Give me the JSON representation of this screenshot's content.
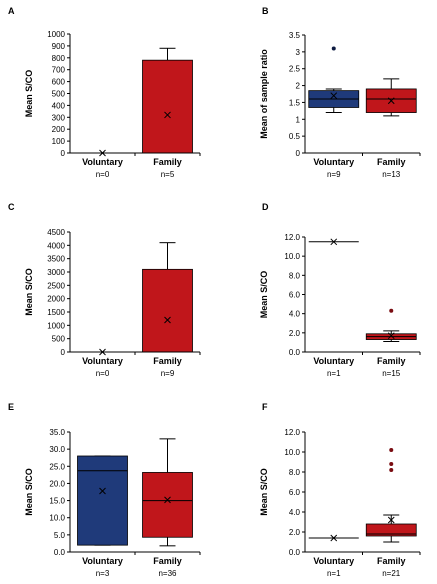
{
  "chart_data": [
    {
      "type": "box",
      "panel": "A",
      "y_label": "Mean S/CO",
      "categories": [
        "Voluntary",
        "Family"
      ],
      "sublabels": [
        "n=0",
        "n=5"
      ],
      "ylim": [
        0,
        1000
      ],
      "yticks": [
        0,
        100,
        200,
        300,
        400,
        500,
        600,
        700,
        800,
        900,
        1000
      ],
      "boxes": [
        {
          "color": "#1f3a7a",
          "median": 0,
          "mean": 0
        },
        {
          "color": "#c0161b",
          "q1": 0,
          "median": 0,
          "q3": 780,
          "whisker_low": 0,
          "whisker_high": 880,
          "mean": 320
        }
      ]
    },
    {
      "type": "box",
      "panel": "B",
      "y_label": "Mean of sample ratio",
      "categories": [
        "Voluntary",
        "Family"
      ],
      "sublabels": [
        "n=9",
        "n=13"
      ],
      "ylim": [
        0,
        3.5
      ],
      "yticks": [
        0,
        0.5,
        1,
        1.5,
        2,
        2.5,
        3,
        3.5
      ],
      "boxes": [
        {
          "color": "#1f3a7a",
          "q1": 1.35,
          "median": 1.6,
          "q3": 1.85,
          "whisker_low": 1.2,
          "whisker_high": 1.9,
          "mean": 1.7,
          "outliers": [
            3.1
          ],
          "outlier_color": "#0d1a40"
        },
        {
          "color": "#c0161b",
          "q1": 1.2,
          "median": 1.6,
          "q3": 1.9,
          "whisker_low": 1.1,
          "whisker_high": 2.2,
          "mean": 1.55
        }
      ]
    },
    {
      "type": "box",
      "panel": "C",
      "y_label": "Mean S/CO",
      "categories": [
        "Voluntary",
        "Family"
      ],
      "sublabels": [
        "n=0",
        "n=9"
      ],
      "ylim": [
        0,
        4500
      ],
      "yticks": [
        0,
        500,
        1000,
        1500,
        2000,
        2500,
        3000,
        3500,
        4000,
        4500
      ],
      "boxes": [
        {
          "color": "#1f3a7a",
          "median": 0,
          "mean": 0
        },
        {
          "color": "#c0161b",
          "q1": 0,
          "median": 0,
          "q3": 3100,
          "whisker_low": 0,
          "whisker_high": 4100,
          "mean": 1200
        }
      ]
    },
    {
      "type": "box",
      "panel": "D",
      "y_label": "Mean S/CO",
      "categories": [
        "Voluntary",
        "Family"
      ],
      "sublabels": [
        "n=1",
        "n=15"
      ],
      "ylim": [
        0,
        12
      ],
      "yticks": [
        {
          "value": 0,
          "label": "0.0"
        },
        {
          "value": 2,
          "label": "2.0"
        },
        {
          "value": 4,
          "label": "4.0"
        },
        {
          "value": 6,
          "label": "6.0"
        },
        {
          "value": 8,
          "label": "8.0"
        },
        {
          "value": 10,
          "label": "10.0"
        },
        {
          "value": 12,
          "label": "12.0"
        }
      ],
      "boxes": [
        {
          "color": "#1f3a7a",
          "median": 11.5,
          "mean": 11.5
        },
        {
          "color": "#c0161b",
          "q1": 1.3,
          "median": 1.6,
          "q3": 1.9,
          "whisker_low": 1.1,
          "whisker_high": 2.2,
          "mean": 1.7,
          "outliers": [
            4.3
          ],
          "outlier_color": "#7a0d12"
        }
      ]
    },
    {
      "type": "box",
      "panel": "E",
      "y_label": "Mean S/CO",
      "categories": [
        "Voluntary",
        "Family"
      ],
      "sublabels": [
        "n=3",
        "n=36"
      ],
      "ylim": [
        0,
        35
      ],
      "yticks": [
        {
          "value": 0,
          "label": "0.0"
        },
        {
          "value": 5,
          "label": "5.0"
        },
        {
          "value": 10,
          "label": "10.0"
        },
        {
          "value": 15,
          "label": "15.0"
        },
        {
          "value": 20,
          "label": "20.0"
        },
        {
          "value": 25,
          "label": "25.0"
        },
        {
          "value": 30,
          "label": "30.0"
        },
        {
          "value": 35,
          "label": "35.0"
        }
      ],
      "boxes": [
        {
          "color": "#1f3a7a",
          "q1": 2,
          "median": 23.7,
          "q3": 28,
          "whisker_low": 2,
          "whisker_high": 28,
          "mean": 17.8
        },
        {
          "color": "#c0161b",
          "q1": 4.3,
          "median": 15,
          "q3": 23.2,
          "whisker_low": 1.8,
          "whisker_high": 33,
          "mean": 15.2
        }
      ]
    },
    {
      "type": "box",
      "panel": "F",
      "y_label": "Mean S/CO",
      "categories": [
        "Voluntary",
        "Family"
      ],
      "sublabels": [
        "n=1",
        "n=21"
      ],
      "ylim": [
        0,
        12
      ],
      "yticks": [
        {
          "value": 0,
          "label": "0.0"
        },
        {
          "value": 2,
          "label": "2.0"
        },
        {
          "value": 4,
          "label": "4.0"
        },
        {
          "value": 6,
          "label": "6.0"
        },
        {
          "value": 8,
          "label": "8.0"
        },
        {
          "value": 10,
          "label": "10.0"
        },
        {
          "value": 12,
          "label": "12.0"
        }
      ],
      "boxes": [
        {
          "color": "#1f3a7a",
          "median": 1.4,
          "mean": 1.4
        },
        {
          "color": "#c0161b",
          "q1": 1.6,
          "median": 1.8,
          "q3": 2.8,
          "whisker_low": 1.0,
          "whisker_high": 3.7,
          "mean": 3.2,
          "outliers": [
            8.2,
            8.8,
            10.2
          ],
          "outlier_color": "#7a0d12"
        }
      ]
    }
  ]
}
